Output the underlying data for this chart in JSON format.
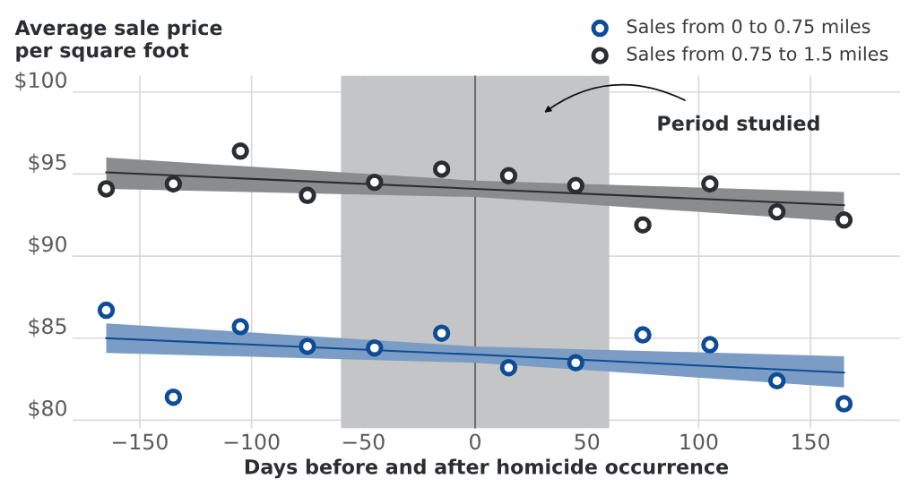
{
  "chart_data": {
    "type": "scatter",
    "xlabel": "Days before and after homicide occurrence",
    "ylabel": "Average sale price\nper square foot",
    "x": [
      -165,
      -135,
      -105,
      -75,
      -45,
      -15,
      15,
      45,
      75,
      105,
      135,
      165
    ],
    "series": [
      {
        "name": "Sales from 0 to 0.75 miles",
        "color": "#0f4c96",
        "values": [
          86.7,
          81.4,
          85.7,
          84.5,
          84.4,
          85.3,
          83.2,
          83.5,
          85.2,
          84.6,
          82.4,
          81.0
        ]
      },
      {
        "name": "Sales from 0.75 to 1.5 miles",
        "color": "#2b2e31",
        "values": [
          94.1,
          94.4,
          96.4,
          93.7,
          94.5,
          95.3,
          94.9,
          94.3,
          91.9,
          94.4,
          92.7,
          92.2
        ]
      },
      {
        "type": "line",
        "color": "#0f4c96",
        "marker": "none",
        "x": [
          -165,
          0,
          165
        ],
        "values": [
          85.0,
          84.0,
          82.9
        ],
        "lower": [
          84.1,
          83.5,
          82.0
        ],
        "upper": [
          85.9,
          84.5,
          83.9
        ]
      },
      {
        "type": "line",
        "color": "#2b2e31",
        "marker": "none",
        "x": [
          -165,
          0,
          165
        ],
        "values": [
          95.1,
          94.1,
          93.1
        ],
        "lower": [
          94.1,
          93.6,
          92.1
        ],
        "upper": [
          96.0,
          94.6,
          93.9
        ]
      }
    ],
    "bands": [
      {
        "axis": "x",
        "from": -60,
        "to": 60,
        "color": "#c4c5c6"
      }
    ],
    "ref_lines": [
      {
        "axis": "x",
        "value": 0,
        "color": "#6e6e6e"
      }
    ],
    "annotations": [
      "Period studied"
    ],
    "xlim": [
      -180,
      190
    ],
    "xticks": [
      -150,
      -100,
      -50,
      0,
      50,
      100,
      150
    ],
    "ylim": [
      79.5,
      101
    ],
    "yticks": [
      {
        "value": 80,
        "label": "$80"
      },
      {
        "value": 85,
        "label": "$85"
      },
      {
        "value": 90,
        "label": "$90"
      },
      {
        "value": 95,
        "label": "$95"
      },
      {
        "value": 100,
        "label": "$100"
      }
    ],
    "grid": true,
    "legend": "top right",
    "marker": "circle"
  }
}
